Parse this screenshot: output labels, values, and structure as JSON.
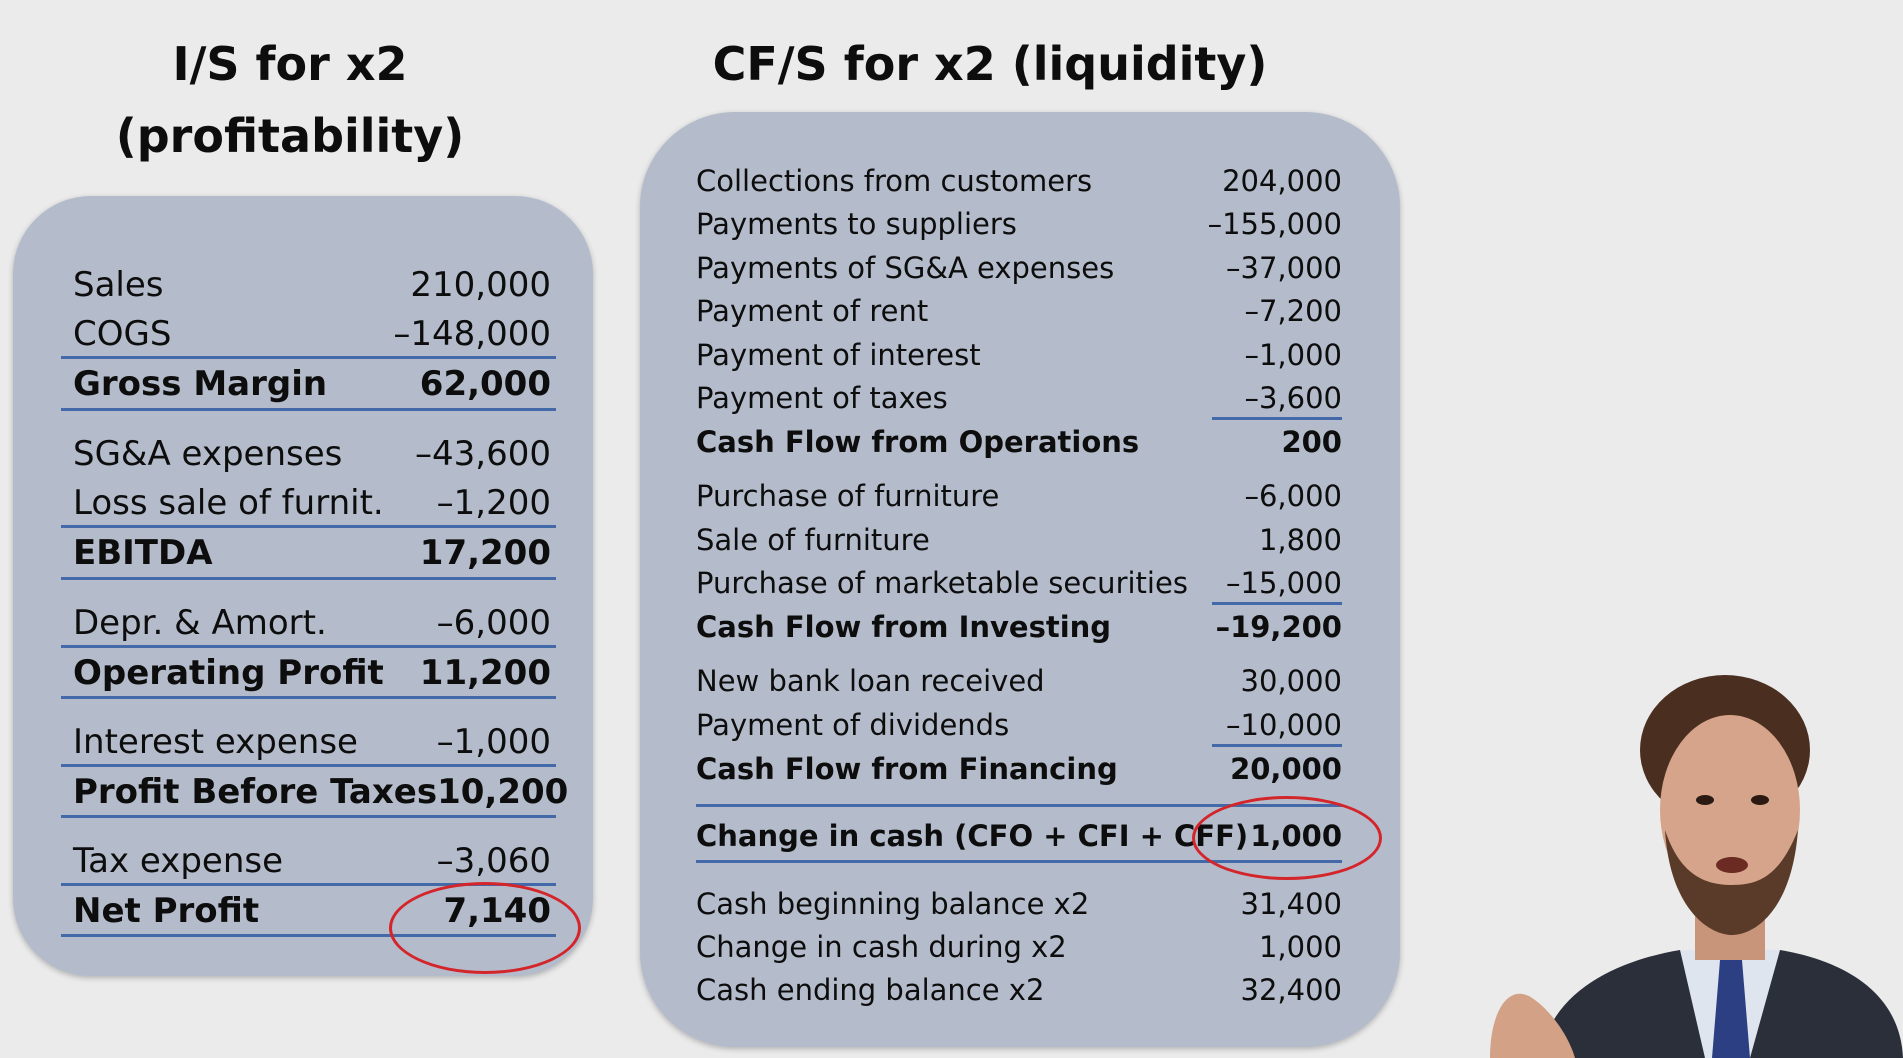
{
  "is": {
    "title": "I/S for x2\n(profitability)",
    "rows": [
      {
        "label": "Sales",
        "value": "210,000"
      },
      {
        "label": "COGS",
        "value": "–148,000"
      },
      {
        "label": "Gross Margin",
        "value": "62,000"
      },
      {
        "label": "SG&A expenses",
        "value": "–43,600"
      },
      {
        "label": "Loss sale of furnit.",
        "value": "–1,200"
      },
      {
        "label": "EBITDA",
        "value": "17,200"
      },
      {
        "label": "Depr. & Amort.",
        "value": "–6,000"
      },
      {
        "label": "Operating Profit",
        "value": "11,200"
      },
      {
        "label": "Interest expense",
        "value": "–1,000"
      },
      {
        "label": "Profit Before Taxes",
        "value": "10,200"
      },
      {
        "label": "Tax expense",
        "value": "–3,060"
      },
      {
        "label": "Net Profit",
        "value": "7,140"
      }
    ]
  },
  "cf": {
    "title": "CF/S for x2 (liquidity)",
    "rows": [
      {
        "label": "Collections from customers",
        "value": "204,000"
      },
      {
        "label": "Payments to suppliers",
        "value": "–155,000"
      },
      {
        "label": "Payments of SG&A expenses",
        "value": "–37,000"
      },
      {
        "label": "Payment of rent",
        "value": "–7,200"
      },
      {
        "label": "Payment of interest",
        "value": "–1,000"
      },
      {
        "label": "Payment of taxes",
        "value": "–3,600"
      },
      {
        "label": "Cash Flow from Operations",
        "value": "200"
      },
      {
        "label": "Purchase of furniture",
        "value": "–6,000"
      },
      {
        "label": "Sale of furniture",
        "value": "1,800"
      },
      {
        "label": "Purchase of marketable securities",
        "value": "–15,000"
      },
      {
        "label": "Cash Flow from Investing",
        "value": "–19,200"
      },
      {
        "label": "New bank loan received",
        "value": "30,000"
      },
      {
        "label": "Payment of dividends",
        "value": "–10,000"
      },
      {
        "label": "Cash Flow from Financing",
        "value": "20,000"
      },
      {
        "label": "Change in cash (CFO + CFI + CFF)",
        "value": "1,000"
      },
      {
        "label": "Cash beginning balance x2",
        "value": "31,400"
      },
      {
        "label": "Change in cash during x2",
        "value": "1,000"
      },
      {
        "label": "Cash ending balance x2",
        "value": "32,400"
      }
    ]
  },
  "colors": {
    "panel": "#b4bccb",
    "underline": "#2f5aa3",
    "highlight_circle": "#d4252b",
    "background": "#ebebeb"
  }
}
